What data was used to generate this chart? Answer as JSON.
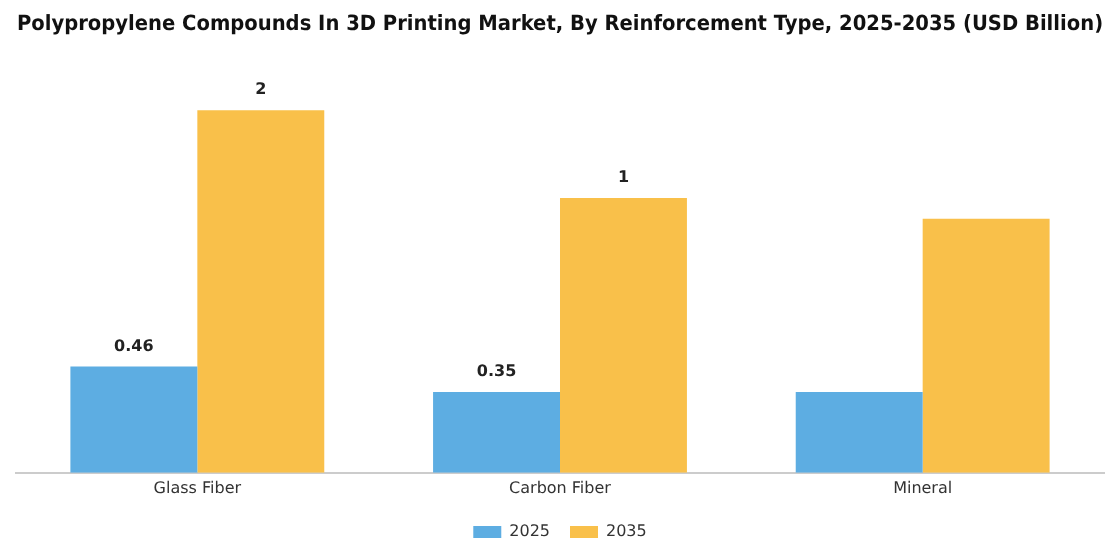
{
  "chart_data": {
    "type": "bar",
    "title": "Polypropylene Compounds In 3D Printing Market, By Reinforcement Type, 2025-2035 (USD Billion)",
    "categories": [
      "Glass Fiber",
      "Carbon Fiber",
      "Mineral"
    ],
    "series": [
      {
        "name": "2025",
        "color": "#5dade2",
        "values": [
          0.46,
          0.35,
          0.35
        ],
        "value_labels": [
          "0.46",
          "0.35",
          null
        ]
      },
      {
        "name": "2035",
        "color": "#f9c04a",
        "values": [
          1.57,
          1.19,
          1.1
        ],
        "value_labels": [
          "2",
          "1",
          null
        ]
      }
    ],
    "legend": "bottom",
    "grid": false
  }
}
